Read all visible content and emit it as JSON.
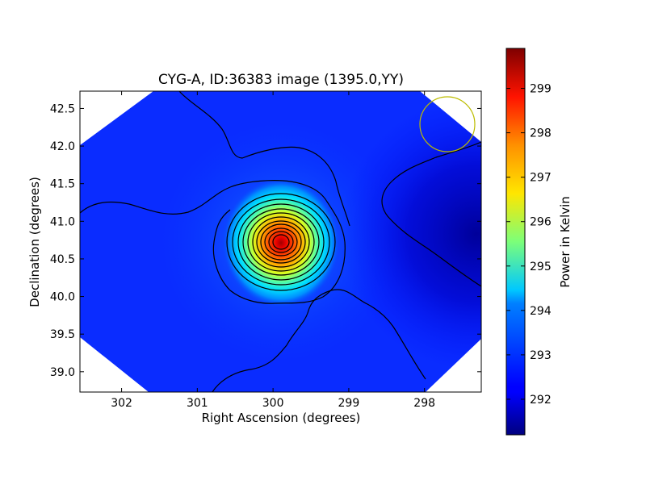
{
  "chart_data": {
    "type": "heatmap",
    "title": "CYG-A, ID:36383 image (1395.0,YY)",
    "xlabel": "Right Ascension (degrees)",
    "ylabel": "Declination (degrees)",
    "xlim": [
      302.55,
      297.25
    ],
    "ylim": [
      38.73,
      42.73
    ],
    "x_ticks": [
      {
        "value": 302,
        "label": "302"
      },
      {
        "value": 301,
        "label": "301"
      },
      {
        "value": 300,
        "label": "300"
      },
      {
        "value": 299,
        "label": "299"
      },
      {
        "value": 298,
        "label": "298"
      }
    ],
    "y_ticks": [
      {
        "value": 39.0,
        "label": "39.0"
      },
      {
        "value": 39.5,
        "label": "39.5"
      },
      {
        "value": 40.0,
        "label": "40.0"
      },
      {
        "value": 40.5,
        "label": "40.5"
      },
      {
        "value": 41.0,
        "label": "41.0"
      },
      {
        "value": 41.5,
        "label": "41.5"
      },
      {
        "value": 42.0,
        "label": "42.0"
      },
      {
        "value": 42.5,
        "label": "42.5"
      }
    ],
    "colorbar": {
      "label": "Power in Kelvin",
      "colormap": "jet",
      "min": 291.2,
      "max": 299.9,
      "ticks": [
        {
          "value": 292,
          "label": "292"
        },
        {
          "value": 293,
          "label": "293"
        },
        {
          "value": 294,
          "label": "294"
        },
        {
          "value": 295,
          "label": "295"
        },
        {
          "value": 296,
          "label": "296"
        },
        {
          "value": 297,
          "label": "297"
        },
        {
          "value": 298,
          "label": "298"
        },
        {
          "value": 299,
          "label": "299"
        }
      ]
    },
    "source": {
      "name": "CYG-A",
      "ra": 299.87,
      "dec": 40.73,
      "peak": 299.9
    },
    "background_level": 292.8,
    "beam_marker": {
      "ra": 297.65,
      "dec": 42.28,
      "color": "#bcbc00"
    },
    "contour_color": "#000000"
  }
}
